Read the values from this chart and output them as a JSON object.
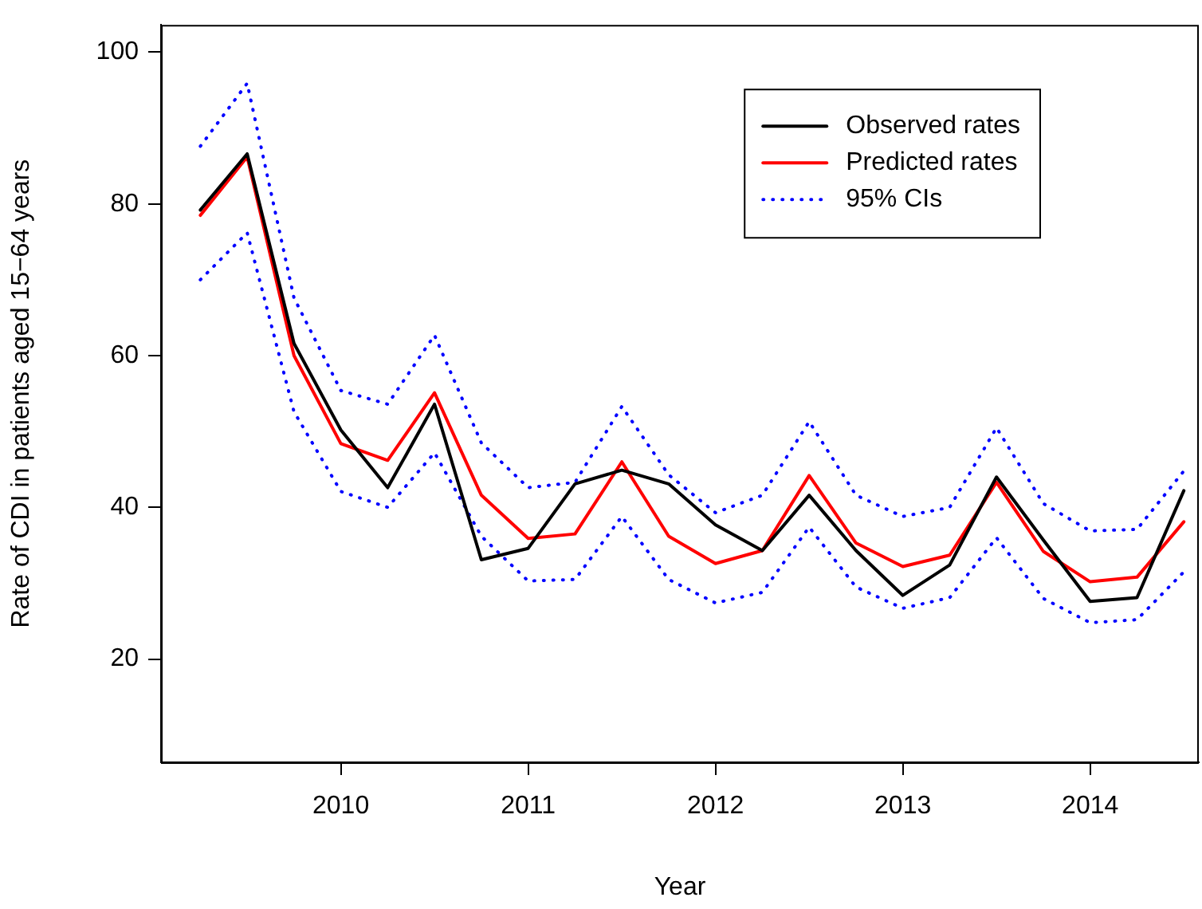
{
  "chart_data": {
    "type": "line",
    "xlabel": "Year",
    "ylabel": "Rate of CDI in patients aged 15−64 years",
    "x": [
      2009.25,
      2009.5,
      2009.75,
      2010,
      2010.25,
      2010.5,
      2010.75,
      2011,
      2011.25,
      2011.5,
      2011.75,
      2012,
      2012.25,
      2012.5,
      2012.75,
      2013,
      2013.25,
      2013.5,
      2013.75,
      2014,
      2014.25,
      2014.5
    ],
    "series": [
      {
        "name": "Observed rates",
        "color": "#000000",
        "line_style": "solid",
        "values": [
          79.2,
          86.6,
          61.6,
          50.2,
          42.6,
          53.6,
          33.1,
          34.6,
          43.1,
          44.9,
          43.1,
          37.7,
          34.3,
          41.6,
          34.3,
          28.4,
          32.4,
          44.0,
          35.7,
          27.6,
          28.1,
          42.2
        ]
      },
      {
        "name": "Predicted rates",
        "color": "#ff0000",
        "line_style": "solid",
        "values": [
          78.5,
          86.2,
          60.0,
          48.4,
          46.2,
          55.1,
          41.6,
          35.9,
          36.5,
          46.0,
          36.2,
          32.6,
          34.3,
          44.2,
          35.3,
          32.2,
          33.7,
          43.3,
          34.2,
          30.2,
          30.8,
          38.1
        ]
      },
      {
        "name": "95% CIs",
        "color": "#0000ff",
        "line_style": "dotted",
        "values": [
          87.6,
          95.9,
          67.6,
          55.4,
          53.6,
          62.7,
          48.5,
          42.6,
          43.3,
          53.3,
          44.3,
          39.3,
          41.6,
          51.3,
          41.6,
          38.8,
          40.0,
          50.5,
          40.5,
          36.9,
          37.1,
          44.8
        ]
      },
      {
        "color": "#0000ff",
        "line_style": "dotted",
        "values": [
          70.0,
          76.2,
          52.6,
          42.1,
          40.0,
          47.2,
          36.2,
          30.3,
          30.5,
          38.8,
          30.5,
          27.4,
          28.8,
          37.4,
          29.5,
          26.7,
          28.1,
          36.0,
          28.0,
          24.8,
          25.2,
          31.5
        ]
      }
    ],
    "xlim": [
      2009.04,
      2014.58
    ],
    "xticks": [
      2010,
      2011,
      2012,
      2013,
      2014
    ],
    "ylim": [
      6.4,
      103.6
    ],
    "yticks": [
      20,
      40,
      60,
      80,
      100
    ],
    "grid": false,
    "legend": "top right",
    "marker": "none"
  }
}
